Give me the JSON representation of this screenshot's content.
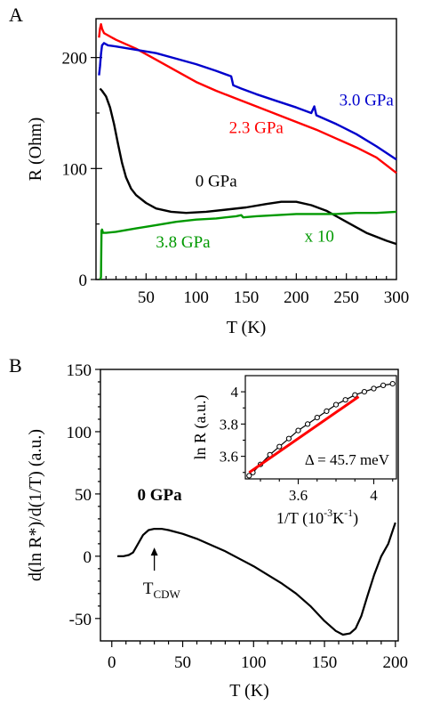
{
  "chart_data": [
    {
      "type": "line",
      "panel": "A",
      "xlabel": "T (K)",
      "ylabel": "R (Ohm)",
      "xlim": [
        0,
        300
      ],
      "ylim": [
        0,
        235
      ],
      "xticks": [
        50,
        100,
        150,
        200,
        250,
        300
      ],
      "yticks": [
        0,
        100,
        200
      ],
      "grid": false,
      "series": [
        {
          "name": "0 GPa",
          "color": "#000000",
          "x": [
            4,
            6,
            10,
            14,
            18,
            22,
            26,
            30,
            35,
            40,
            50,
            60,
            75,
            90,
            110,
            130,
            150,
            170,
            185,
            200,
            215,
            230,
            250,
            270,
            290,
            300
          ],
          "y": [
            172,
            170,
            165,
            155,
            140,
            122,
            105,
            92,
            82,
            76,
            69,
            64,
            61,
            60,
            61,
            63,
            65,
            68,
            70,
            70,
            67,
            62,
            52,
            42,
            35,
            32
          ]
        },
        {
          "name": "2.3 GPa",
          "color": "#ff0000",
          "x": [
            3,
            4,
            5,
            6,
            8,
            10,
            20,
            40,
            60,
            80,
            100,
            120,
            140,
            160,
            180,
            200,
            220,
            240,
            260,
            280,
            290,
            300
          ],
          "y": [
            218,
            226,
            230,
            226,
            222,
            221,
            216,
            208,
            198,
            188,
            178,
            170,
            163,
            156,
            149,
            142,
            135,
            127,
            119,
            110,
            103,
            96
          ]
        },
        {
          "name": "3.0 GPa",
          "color": "#0000cc",
          "x": [
            3,
            4,
            5,
            6,
            8,
            12,
            20,
            40,
            60,
            80,
            100,
            120,
            135,
            137,
            145,
            160,
            180,
            200,
            215,
            218,
            220,
            240,
            260,
            280,
            300
          ],
          "y": [
            184,
            192,
            203,
            211,
            213,
            211,
            210,
            207,
            204,
            199,
            194,
            188,
            183,
            175,
            172,
            167,
            161,
            155,
            150,
            156,
            148,
            140,
            131,
            120,
            108
          ]
        },
        {
          "name": "3.8 GPa",
          "color": "#009900",
          "x": [
            4,
            5,
            5.5,
            6,
            7,
            10,
            20,
            40,
            60,
            80,
            100,
            120,
            140,
            145,
            147,
            160,
            180,
            200,
            220,
            240,
            260,
            280,
            300
          ],
          "y": [
            0,
            2,
            44,
            45,
            42,
            42,
            43,
            46,
            49,
            52,
            54,
            55,
            57,
            58,
            56,
            57,
            58,
            59,
            59,
            59,
            60,
            60,
            61
          ]
        }
      ],
      "annotations": [
        {
          "text": "0 GPa",
          "x": 120,
          "y": 84,
          "color": "#000000"
        },
        {
          "text": "2.3 GPa",
          "x": 160,
          "y": 132,
          "color": "#ff0000"
        },
        {
          "text": "3.0 GPa",
          "x": 270,
          "y": 157,
          "color": "#0000cc"
        },
        {
          "text": "3.8 GPa",
          "x": 87,
          "y": 29,
          "color": "#009900"
        },
        {
          "text": "x 10",
          "x": 223,
          "y": 34,
          "color": "#009900"
        }
      ]
    },
    {
      "type": "line",
      "panel": "B",
      "xlabel": "T (K)",
      "ylabel": "d(ln R*)/d(1/T) (a.u.)",
      "xlim": [
        -8,
        202
      ],
      "ylim": [
        -68,
        150
      ],
      "xticks": [
        0,
        50,
        100,
        150,
        200
      ],
      "yticks": [
        -50,
        0,
        50,
        100,
        150
      ],
      "grid": false,
      "series": [
        {
          "name": "0 GPa",
          "color": "#000000",
          "x": [
            4,
            8,
            12,
            15,
            18,
            22,
            26,
            30,
            35,
            40,
            50,
            60,
            70,
            80,
            90,
            100,
            110,
            120,
            130,
            140,
            150,
            158,
            163,
            168,
            172,
            176,
            180,
            185,
            190,
            195,
            200
          ],
          "y": [
            0,
            0,
            1,
            3,
            9,
            17,
            21,
            22,
            22,
            21,
            18,
            14,
            9,
            4,
            -2,
            -8,
            -15,
            -22,
            -30,
            -40,
            -52,
            -60,
            -63,
            -62,
            -58,
            -48,
            -33,
            -15,
            0,
            10,
            27
          ]
        }
      ],
      "annotations": [
        {
          "text": "0 GPa",
          "x": 18,
          "y": 45
        },
        {
          "text": "T",
          "sub": "CDW",
          "arrow_x": 30,
          "arrow_tip_y": 7,
          "x": 22,
          "y": -30
        }
      ],
      "inset": {
        "type": "line",
        "xlabel_base": "1/T (10",
        "xlabel_exp": "-3",
        "xlabel_unit": "K",
        "xlabel_unit_exp": "-1",
        "xlabel_close": ")",
        "ylabel": "ln R (a.u.)",
        "xlim": [
          3.32,
          4.12
        ],
        "ylim": [
          3.46,
          4.1
        ],
        "xticks": [
          3.6,
          4.0
        ],
        "yticks": [
          3.6,
          3.8,
          4.0
        ],
        "annotation": "Δ = 45.7 meV",
        "series": [
          {
            "name": "data",
            "color": "#000000",
            "marker": "open-circle",
            "x": [
              3.34,
              3.36,
              3.4,
              3.45,
              3.5,
              3.55,
              3.6,
              3.65,
              3.7,
              3.75,
              3.8,
              3.85,
              3.9,
              3.95,
              4.0,
              4.05,
              4.1
            ],
            "y": [
              3.48,
              3.5,
              3.55,
              3.61,
              3.66,
              3.71,
              3.76,
              3.8,
              3.84,
              3.88,
              3.92,
              3.95,
              3.98,
              4.0,
              4.02,
              4.04,
              4.05
            ]
          },
          {
            "name": "fit",
            "color": "#ff0000",
            "x": [
              3.34,
              3.92
            ],
            "y": [
              3.5,
              3.97
            ]
          }
        ]
      }
    }
  ],
  "panel_labels": [
    "A",
    "B"
  ]
}
